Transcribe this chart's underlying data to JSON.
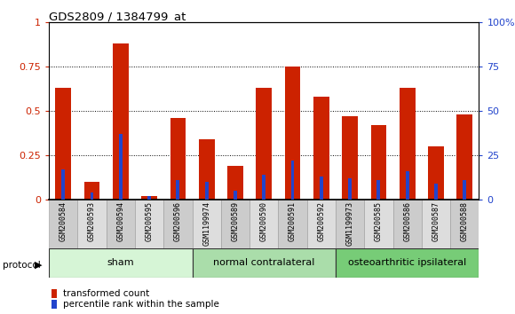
{
  "title": "GDS2809 / 1384799_at",
  "samples": [
    "GSM200584",
    "GSM200593",
    "GSM200594",
    "GSM200595",
    "GSM200596",
    "GSM1199974",
    "GSM200589",
    "GSM200590",
    "GSM200591",
    "GSM200592",
    "GSM1199973",
    "GSM200585",
    "GSM200586",
    "GSM200587",
    "GSM200588"
  ],
  "red_values": [
    0.63,
    0.1,
    0.88,
    0.02,
    0.46,
    0.34,
    0.19,
    0.63,
    0.75,
    0.58,
    0.47,
    0.42,
    0.63,
    0.3,
    0.48
  ],
  "blue_values": [
    0.17,
    0.04,
    0.37,
    0.02,
    0.11,
    0.1,
    0.05,
    0.14,
    0.22,
    0.13,
    0.12,
    0.11,
    0.16,
    0.09,
    0.11
  ],
  "groups": [
    {
      "label": "sham",
      "start": 0,
      "end": 5,
      "color": "#d6f5d6"
    },
    {
      "label": "normal contralateral",
      "start": 5,
      "end": 10,
      "color": "#aaddaa"
    },
    {
      "label": "osteoarthritic ipsilateral",
      "start": 10,
      "end": 15,
      "color": "#77cc77"
    }
  ],
  "ylim_left": [
    0,
    1.0
  ],
  "ylim_right": [
    0,
    100
  ],
  "yticks_left": [
    0,
    0.25,
    0.5,
    0.75,
    1.0
  ],
  "ytick_labels_left": [
    "0",
    "0.25",
    "0.5",
    "0.75",
    "1"
  ],
  "yticks_right": [
    0,
    25,
    50,
    75,
    100
  ],
  "ytick_labels_right": [
    "0",
    "25",
    "50",
    "75",
    "100%"
  ],
  "red_color": "#cc2200",
  "blue_color": "#2244cc",
  "protocol_label": "protocol",
  "legend_red": "transformed count",
  "legend_blue": "percentile rank within the sample"
}
